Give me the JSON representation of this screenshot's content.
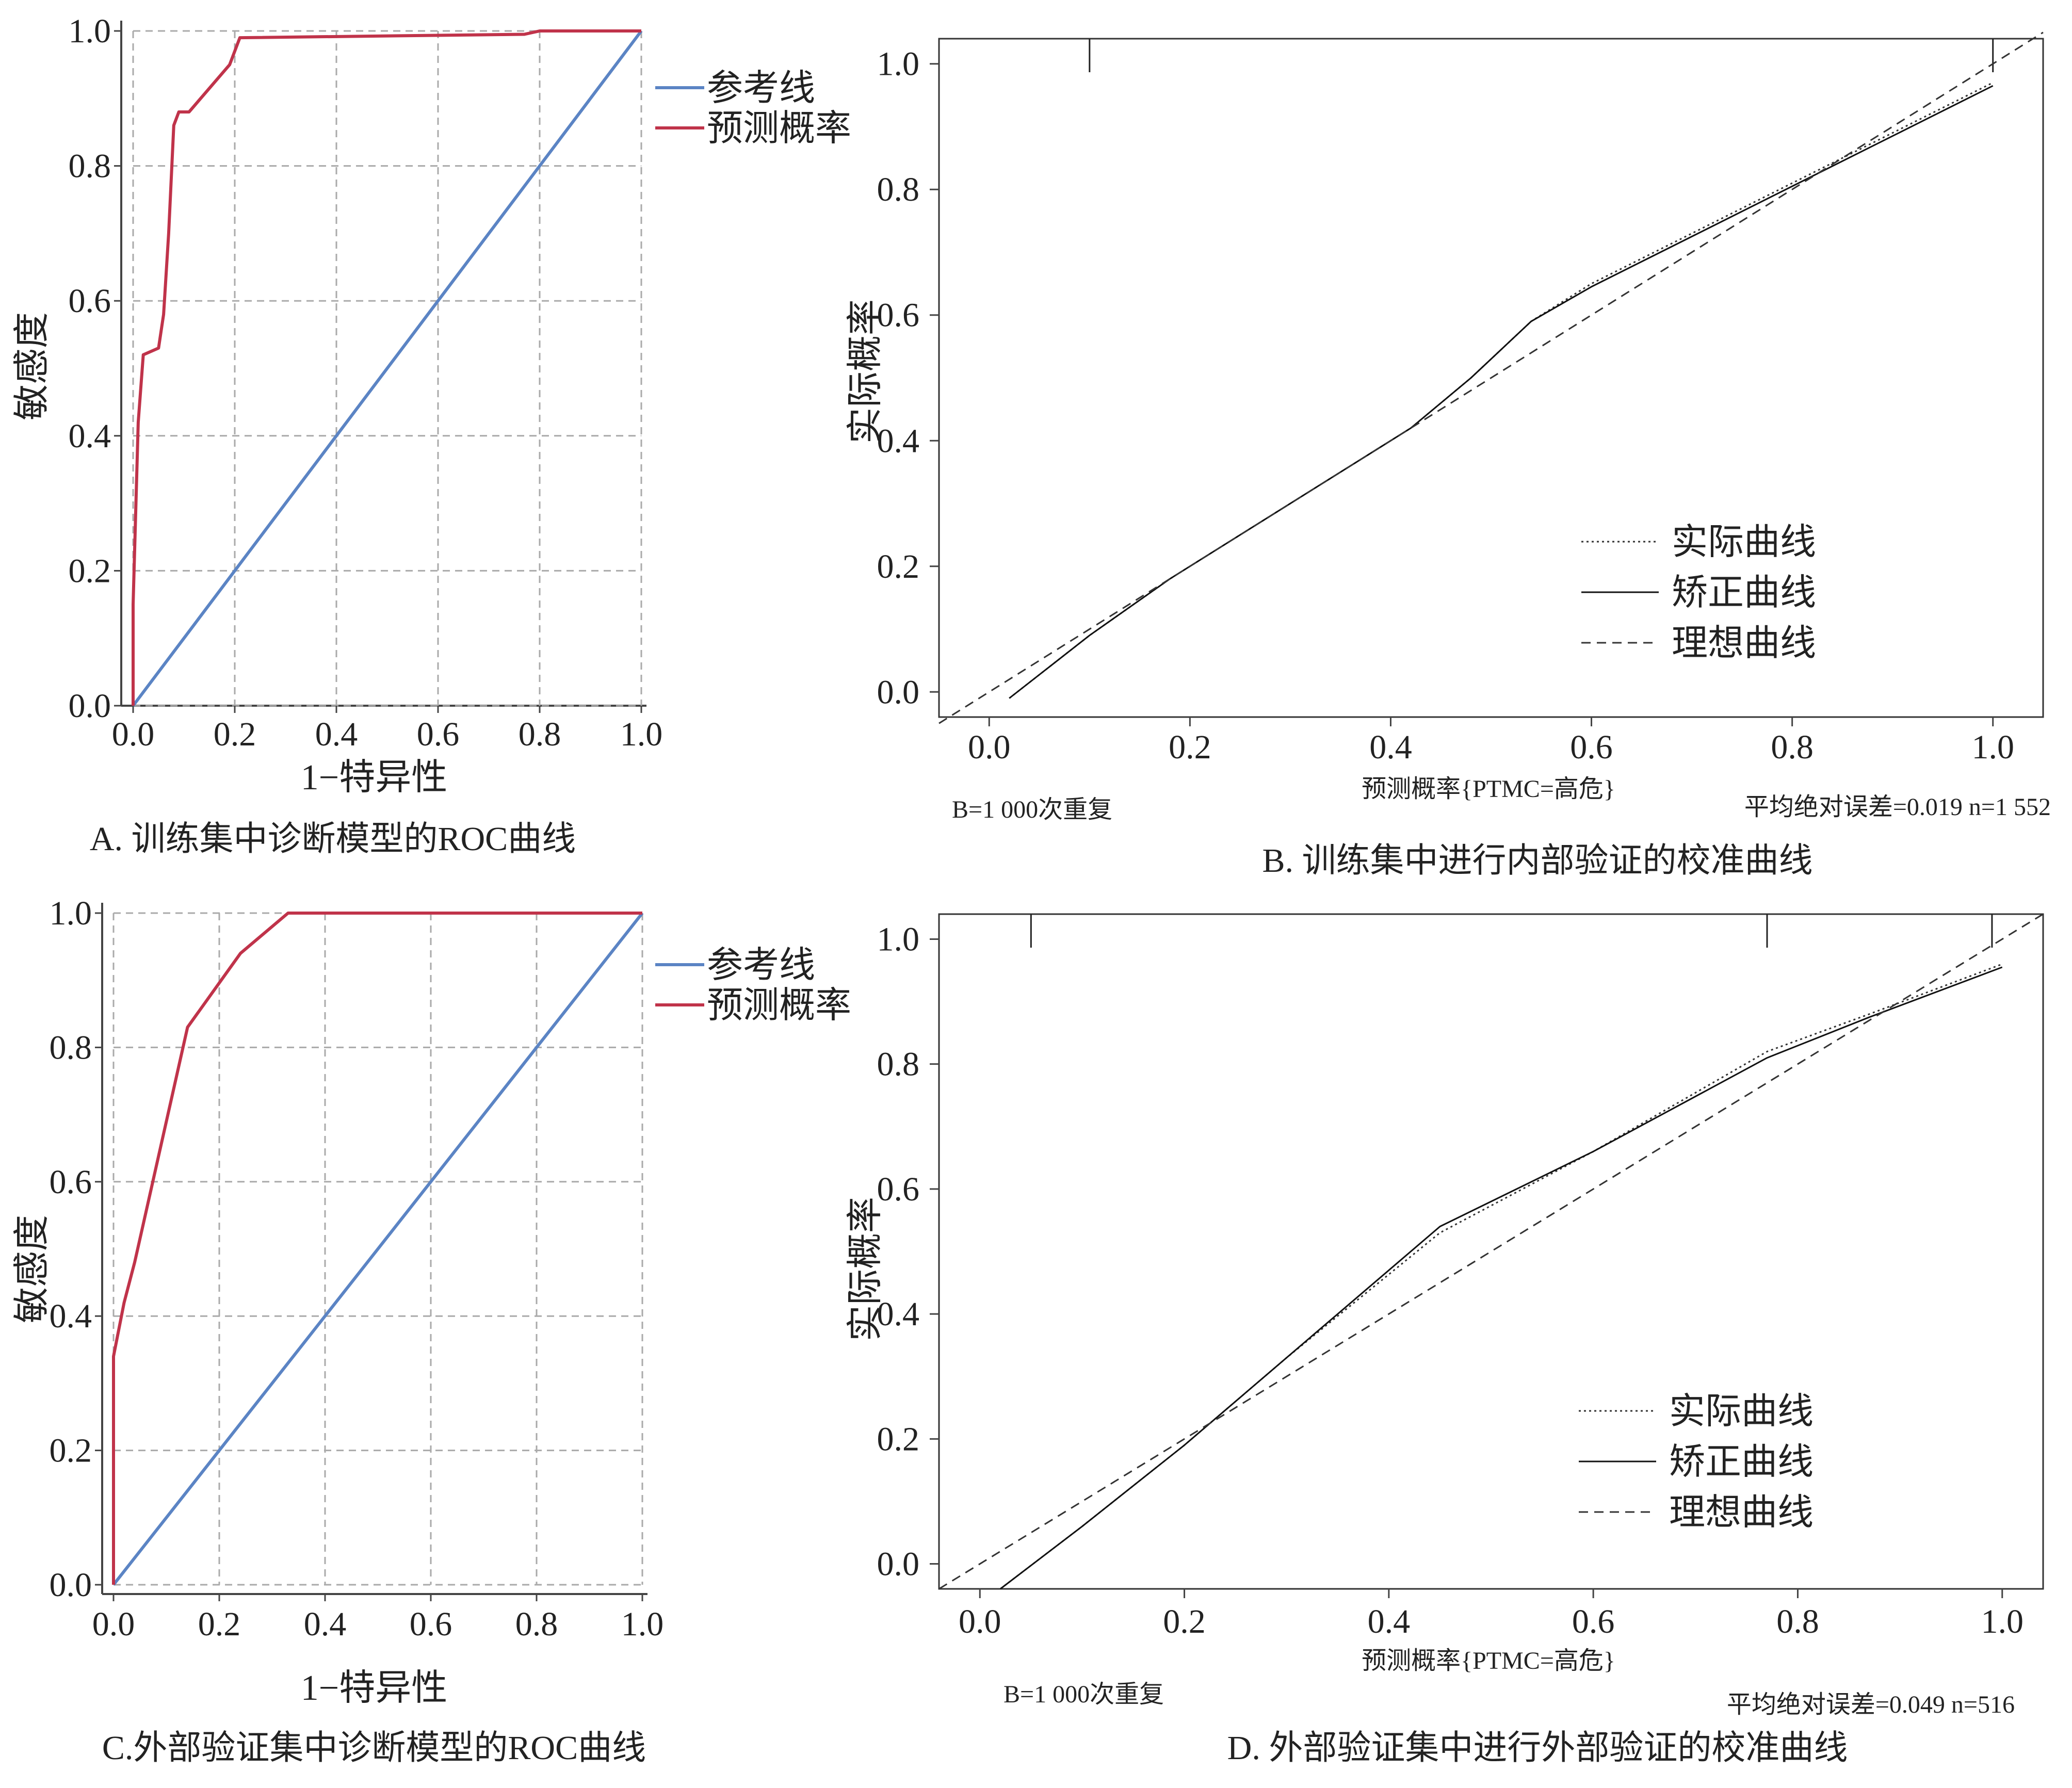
{
  "chart_data": [
    {
      "panel": "A",
      "type": "line",
      "caption": "A. 训练集中诊断模型的ROC曲线",
      "xlabel": "1−特异性",
      "ylabel": "敏感度",
      "xlim": [
        0,
        1
      ],
      "ylim": [
        0,
        1
      ],
      "xticks": [
        "0.0",
        "0.2",
        "0.4",
        "0.6",
        "0.8",
        "1.0"
      ],
      "yticks": [
        "0.0",
        "0.2",
        "0.4",
        "0.6",
        "0.8",
        "1.0"
      ],
      "grid": true,
      "legend_position": "right",
      "series": [
        {
          "name": "参考线",
          "color": "#5b84c4",
          "style": "solid",
          "x": [
            0,
            1
          ],
          "y": [
            0,
            1
          ]
        },
        {
          "name": "预测概率",
          "color": "#c0334a",
          "style": "solid",
          "x": [
            0.0,
            0.0,
            0.01,
            0.02,
            0.05,
            0.06,
            0.07,
            0.08,
            0.09,
            0.11,
            0.19,
            0.21,
            0.77,
            0.8,
            1.0
          ],
          "y": [
            0.0,
            0.15,
            0.42,
            0.52,
            0.53,
            0.58,
            0.7,
            0.86,
            0.88,
            0.88,
            0.95,
            0.99,
            0.995,
            1.0,
            1.0
          ]
        }
      ]
    },
    {
      "panel": "B",
      "type": "line",
      "caption": "B. 训练集中进行内部验证的校准曲线",
      "xlabel": "预测概率{PTMC=高危}",
      "ylabel": "实际概率",
      "xlim": [
        -0.05,
        1.05
      ],
      "ylim": [
        -0.04,
        1.04
      ],
      "xticks": [
        "0.0",
        "0.2",
        "0.4",
        "0.6",
        "0.8",
        "1.0"
      ],
      "yticks": [
        "0.0",
        "0.2",
        "0.4",
        "0.6",
        "0.8",
        "1.0"
      ],
      "grid": false,
      "legend_position": "bottom-right",
      "note_left": "B=1 000次重复",
      "note_right": "平均绝对误差=0.019 n=1 552",
      "rug": [
        0.1,
        1.0
      ],
      "series": [
        {
          "name": "实际曲线",
          "color": "#333333",
          "style": "dotted",
          "x": [
            0.02,
            0.1,
            0.18,
            0.3,
            0.42,
            0.48,
            0.54,
            0.6,
            0.7,
            0.8,
            0.9,
            1.0
          ],
          "y": [
            -0.01,
            0.09,
            0.18,
            0.3,
            0.42,
            0.5,
            0.59,
            0.65,
            0.73,
            0.81,
            0.89,
            0.97
          ]
        },
        {
          "name": "矫正曲线",
          "color": "#111111",
          "style": "solid",
          "x": [
            0.02,
            0.1,
            0.18,
            0.3,
            0.42,
            0.48,
            0.54,
            0.6,
            0.7,
            0.8,
            0.9,
            1.0
          ],
          "y": [
            -0.01,
            0.09,
            0.18,
            0.3,
            0.42,
            0.5,
            0.59,
            0.645,
            0.725,
            0.805,
            0.885,
            0.965
          ]
        },
        {
          "name": "理想曲线",
          "color": "#333333",
          "style": "dashed",
          "x": [
            -0.05,
            1.05
          ],
          "y": [
            -0.05,
            1.05
          ]
        }
      ]
    },
    {
      "panel": "C",
      "type": "line",
      "caption": "C.外部验证集中诊断模型的ROC曲线",
      "xlabel": "1−特异性",
      "ylabel": "敏感度",
      "xlim": [
        0,
        1
      ],
      "ylim": [
        0,
        1
      ],
      "xticks": [
        "0.0",
        "0.2",
        "0.4",
        "0.6",
        "0.8",
        "1.0"
      ],
      "yticks": [
        "0.0",
        "0.2",
        "0.4",
        "0.6",
        "0.8",
        "1.0"
      ],
      "grid": true,
      "legend_position": "right",
      "series": [
        {
          "name": "参考线",
          "color": "#5b84c4",
          "style": "solid",
          "x": [
            0,
            1
          ],
          "y": [
            0,
            1
          ]
        },
        {
          "name": "预测概率",
          "color": "#c0334a",
          "style": "solid",
          "x": [
            0.0,
            0.0,
            0.02,
            0.04,
            0.14,
            0.24,
            0.33,
            1.0
          ],
          "y": [
            0.0,
            0.34,
            0.42,
            0.48,
            0.83,
            0.94,
            1.0,
            1.0
          ]
        }
      ]
    },
    {
      "panel": "D",
      "type": "line",
      "caption": "D. 外部验证集中进行外部验证的校准曲线",
      "xlabel": "预测概率{PTMC=高危}",
      "ylabel": "实际概率",
      "xlim": [
        -0.04,
        1.04
      ],
      "ylim": [
        -0.04,
        1.04
      ],
      "xticks": [
        "0.0",
        "0.2",
        "0.4",
        "0.6",
        "0.8",
        "1.0"
      ],
      "yticks": [
        "0.0",
        "0.2",
        "0.4",
        "0.6",
        "0.8",
        "1.0"
      ],
      "grid": false,
      "legend_position": "bottom-right",
      "note_left": "B=1 000次重复",
      "note_right": "平均绝对误差=0.049 n=516",
      "rug": [
        0.05,
        0.77,
        0.99
      ],
      "series": [
        {
          "name": "实际曲线",
          "color": "#333333",
          "style": "dotted",
          "x": [
            0.02,
            0.1,
            0.2,
            0.3,
            0.45,
            0.6,
            0.77,
            0.87,
            1.0
          ],
          "y": [
            -0.04,
            0.06,
            0.19,
            0.33,
            0.53,
            0.66,
            0.82,
            0.88,
            0.96
          ]
        },
        {
          "name": "矫正曲线",
          "color": "#111111",
          "style": "solid",
          "x": [
            0.02,
            0.1,
            0.2,
            0.3,
            0.45,
            0.6,
            0.77,
            0.87,
            1.0
          ],
          "y": [
            -0.04,
            0.06,
            0.19,
            0.33,
            0.54,
            0.66,
            0.81,
            0.875,
            0.955
          ]
        },
        {
          "name": "理想曲线",
          "color": "#333333",
          "style": "dashed",
          "x": [
            -0.04,
            1.04
          ],
          "y": [
            -0.04,
            1.04
          ]
        }
      ]
    }
  ]
}
